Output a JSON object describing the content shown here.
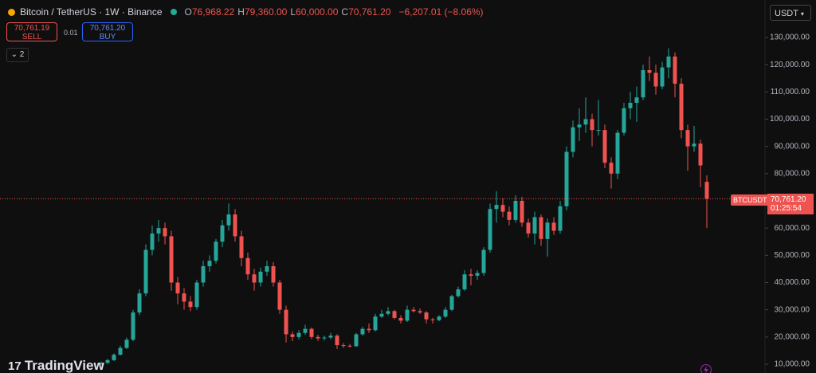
{
  "header": {
    "symbol": "Bitcoin / TetherUS · 1W · Binance",
    "ohlc": [
      {
        "key": "O",
        "value": "76,968.22"
      },
      {
        "key": "H",
        "value": "79,360.00"
      },
      {
        "key": "L",
        "value": "60,000.00"
      },
      {
        "key": "C",
        "value": "70,761.20"
      }
    ],
    "change": "−6,207.01 (−8.06%)"
  },
  "trade": {
    "sell_price": "70,761.19",
    "sell": "SELL",
    "spread": "0.01",
    "buy_price": "70,761.20",
    "buy": "BUY",
    "indicators": "2",
    "currency": "USDT"
  },
  "logo": "TradingView",
  "chart_data": {
    "type": "candlestick",
    "up_color": "#26a69a",
    "down_color": "#ef5350",
    "grid": false,
    "ylim": [
      6780,
      143750
    ],
    "yticks": [
      {
        "value": 10000,
        "label": "10,000.00"
      },
      {
        "value": 20000,
        "label": "20,000.00"
      },
      {
        "value": 30000,
        "label": "30,000.00"
      },
      {
        "value": 40000,
        "label": "40,000.00"
      },
      {
        "value": 50000,
        "label": "50,000.00"
      },
      {
        "value": 60000,
        "label": "60,000.00"
      },
      {
        "value": 70000,
        "label": "70,000.00"
      },
      {
        "value": 80000,
        "label": "80,000.00"
      },
      {
        "value": 90000,
        "label": "90,000.00"
      },
      {
        "value": 100000,
        "label": "100,000.00"
      },
      {
        "value": 110000,
        "label": "110,000.00"
      },
      {
        "value": 120000,
        "label": "120,000.00"
      },
      {
        "value": 130000,
        "label": "130,000.00"
      }
    ],
    "open": [
      10000,
      10500,
      11500,
      13500,
      16000,
      19000,
      29000,
      36000,
      52000,
      58000,
      60000,
      57000,
      40000,
      36000,
      33000,
      31000,
      40000,
      46000,
      48000,
      55000,
      61000,
      65000,
      57000,
      49000,
      43000,
      40000,
      44000,
      46000,
      40000,
      30000,
      21000,
      20000,
      21500,
      23000,
      20000,
      19500,
      19800,
      20500,
      17000,
      16800,
      16600,
      21000,
      23000,
      22500,
      27500,
      28500,
      29500,
      27000,
      26000,
      30000,
      29500,
      29000,
      26500,
      26200,
      27500,
      30000,
      35000,
      37500,
      43000,
      42500,
      43500,
      52000,
      67000,
      68500,
      66000,
      63000,
      70000,
      62000,
      58000,
      64000,
      56000,
      62000,
      59000,
      68000,
      88000,
      97000,
      98000,
      100000,
      96000,
      96000,
      84000,
      80000,
      95000,
      104000,
      106000,
      108000,
      118000,
      117000,
      112000,
      119000,
      123000,
      113000,
      96000,
      90000,
      91000,
      76968.22
    ],
    "high": [
      11000,
      12000,
      14000,
      16800,
      19800,
      30000,
      37500,
      54000,
      61000,
      63000,
      62000,
      59000,
      42000,
      38000,
      35000,
      41000,
      48000,
      50000,
      56000,
      63000,
      69000,
      67000,
      59000,
      51000,
      45000,
      45500,
      48000,
      47500,
      41000,
      31500,
      22000,
      22500,
      24500,
      23500,
      20800,
      20500,
      21500,
      21000,
      17800,
      17400,
      21500,
      23800,
      25000,
      28500,
      30000,
      31000,
      30000,
      28000,
      31500,
      31000,
      30500,
      29500,
      27000,
      28000,
      31000,
      35500,
      38500,
      44500,
      45000,
      44500,
      53000,
      69000,
      73500,
      71000,
      68000,
      72000,
      71500,
      63500,
      66000,
      65000,
      63500,
      64000,
      70000,
      90000,
      99500,
      104000,
      108000,
      102000,
      107000,
      98000,
      86000,
      96000,
      106000,
      110000,
      112000,
      120000,
      123000,
      120000,
      121000,
      126000,
      124500,
      115000,
      98000,
      97500,
      92500,
      79360
    ],
    "low": [
      9700,
      10200,
      11200,
      13200,
      15600,
      18500,
      28000,
      35000,
      50000,
      55000,
      54000,
      37000,
      32000,
      30000,
      29500,
      30000,
      38500,
      44000,
      47000,
      53000,
      59000,
      55000,
      46000,
      41000,
      37000,
      38500,
      42500,
      38500,
      28500,
      18000,
      18500,
      19200,
      20800,
      19200,
      18600,
      18700,
      19200,
      15600,
      16000,
      16200,
      16400,
      20500,
      21500,
      22000,
      27000,
      28000,
      26500,
      25000,
      25500,
      29000,
      28500,
      25000,
      25000,
      25800,
      27000,
      29500,
      34500,
      37000,
      39000,
      41000,
      42500,
      51000,
      62000,
      64000,
      61000,
      62000,
      60500,
      56500,
      54000,
      53500,
      49500,
      57500,
      58000,
      66500,
      86000,
      92000,
      95000,
      90000,
      94000,
      82000,
      74500,
      78000,
      94000,
      100000,
      99000,
      107000,
      114000,
      109000,
      111000,
      115000,
      108000,
      93000,
      81000,
      88000,
      75000,
      60000
    ],
    "close": [
      10500,
      11500,
      13500,
      16000,
      19000,
      29000,
      36000,
      52000,
      58000,
      60000,
      57000,
      40000,
      36000,
      33000,
      31000,
      40000,
      46000,
      48000,
      55000,
      61000,
      65000,
      57000,
      49000,
      43000,
      40000,
      44000,
      46000,
      40000,
      30000,
      21000,
      20000,
      21500,
      23000,
      20000,
      19500,
      19800,
      20500,
      17000,
      16800,
      16600,
      21000,
      23000,
      22500,
      27500,
      28500,
      29500,
      27000,
      26000,
      30000,
      29500,
      29000,
      26500,
      26200,
      27500,
      30000,
      35000,
      37500,
      43000,
      42500,
      43500,
      52000,
      67000,
      68500,
      66000,
      63000,
      70000,
      62000,
      58000,
      64000,
      56000,
      62000,
      59000,
      68000,
      88000,
      97000,
      98000,
      100000,
      96000,
      96000,
      84000,
      80000,
      95000,
      104000,
      106000,
      108000,
      118000,
      117000,
      112000,
      119000,
      123000,
      113000,
      96000,
      90000,
      91000,
      83000,
      70761.2
    ],
    "last_price": {
      "value": 70761.2,
      "label": "70,761.20",
      "symbol": "BTCUSDT",
      "countdown": "01:25:54"
    }
  }
}
